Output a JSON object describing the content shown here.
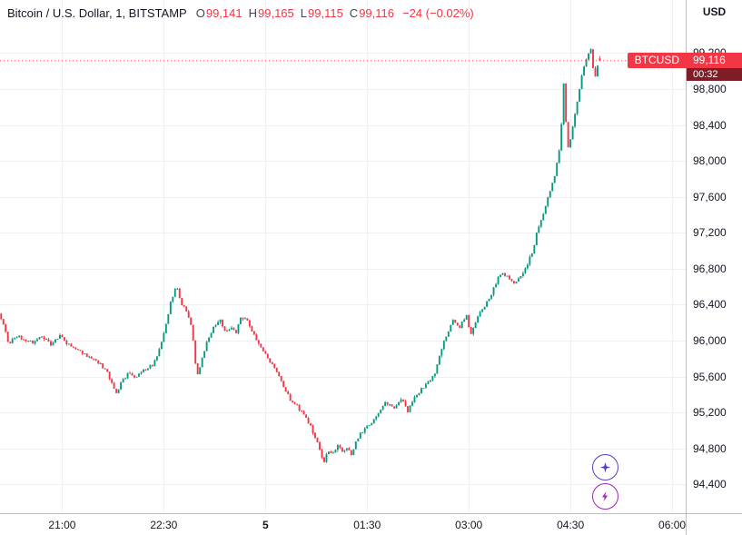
{
  "header": {
    "title": "Bitcoin / U.S. Dollar, 1, BITSTAMP",
    "ohlc": [
      {
        "k": "O",
        "v": "99,141"
      },
      {
        "k": "H",
        "v": "99,165"
      },
      {
        "k": "L",
        "v": "99,115"
      },
      {
        "k": "C",
        "v": "99,116"
      }
    ],
    "change": "−24 (−0.02%)",
    "currency": "USD"
  },
  "price_label": {
    "symbol": "BTCUSD",
    "price": "99,116",
    "countdown": "00:32"
  },
  "colors": {
    "up": "#089981",
    "down": "#f23645",
    "grid": "#eef0f3",
    "axis_line": "#b9bdc6",
    "text": "#131722",
    "badge_bg": "#f23645",
    "countdown_bg": "#7f1d27",
    "ai_button": "#5b3dc8",
    "bolt_button": "#9c27b0"
  },
  "chart_data": {
    "type": "candlestick",
    "title": "Bitcoin / U.S. Dollar",
    "symbol": "BTCUSD",
    "exchange": "BITSTAMP",
    "interval_minutes": 1,
    "last_price": 99116,
    "current_bar": {
      "open": 99141,
      "high": 99165,
      "low": 99115,
      "close": 99116,
      "change": -24,
      "change_pct": -0.02
    },
    "price_axis": {
      "view_min": 94080,
      "view_max": 99790,
      "ticks": [
        {
          "price": 94400,
          "label": "94,400"
        },
        {
          "price": 94800,
          "label": "94,800"
        },
        {
          "price": 95200,
          "label": "95,200"
        },
        {
          "price": 95600,
          "label": "95,600"
        },
        {
          "price": 96000,
          "label": "96,000"
        },
        {
          "price": 96400,
          "label": "96,400"
        },
        {
          "price": 96800,
          "label": "96,800"
        },
        {
          "price": 97200,
          "label": "97,200"
        },
        {
          "price": 97600,
          "label": "97,600"
        },
        {
          "price": 98000,
          "label": "98,000"
        },
        {
          "price": 98400,
          "label": "98,400"
        },
        {
          "price": 98800,
          "label": "98,800"
        },
        {
          "price": 99200,
          "label": "99,200"
        }
      ]
    },
    "time_axis": {
      "view_minutes": 607,
      "ticks": [
        {
          "t": 55,
          "label": "21:00"
        },
        {
          "t": 145,
          "label": "22:30"
        },
        {
          "t": 235,
          "label": "5",
          "strong": true
        },
        {
          "t": 325,
          "label": "01:30"
        },
        {
          "t": 415,
          "label": "03:00"
        },
        {
          "t": 505,
          "label": "04:30"
        },
        {
          "t": 595,
          "label": "06:00"
        }
      ]
    },
    "render": {
      "candle_minutes": 2,
      "seed": 11,
      "close_noise": 38,
      "wick_noise": 26,
      "clamp_low": 94550,
      "clamp_high": 99300
    },
    "price_path": [
      [
        0,
        96300
      ],
      [
        5,
        96150
      ],
      [
        9,
        95950
      ],
      [
        15,
        96060
      ],
      [
        22,
        96020
      ],
      [
        30,
        95980
      ],
      [
        38,
        96060
      ],
      [
        46,
        95960
      ],
      [
        54,
        96050
      ],
      [
        62,
        95950
      ],
      [
        70,
        95900
      ],
      [
        78,
        95830
      ],
      [
        86,
        95780
      ],
      [
        95,
        95670
      ],
      [
        100,
        95530
      ],
      [
        104,
        95420
      ],
      [
        109,
        95550
      ],
      [
        115,
        95640
      ],
      [
        122,
        95590
      ],
      [
        129,
        95680
      ],
      [
        136,
        95730
      ],
      [
        142,
        95900
      ],
      [
        147,
        96150
      ],
      [
        152,
        96420
      ],
      [
        157,
        96620
      ],
      [
        161,
        96430
      ],
      [
        166,
        96330
      ],
      [
        170,
        96180
      ],
      [
        173,
        95940
      ],
      [
        175,
        95560
      ],
      [
        178,
        95710
      ],
      [
        182,
        95900
      ],
      [
        187,
        96070
      ],
      [
        192,
        96190
      ],
      [
        196,
        96240
      ],
      [
        201,
        96080
      ],
      [
        206,
        96150
      ],
      [
        210,
        96090
      ],
      [
        214,
        96270
      ],
      [
        220,
        96230
      ],
      [
        226,
        96060
      ],
      [
        231,
        95950
      ],
      [
        235,
        95870
      ],
      [
        241,
        95750
      ],
      [
        247,
        95630
      ],
      [
        252,
        95480
      ],
      [
        258,
        95350
      ],
      [
        264,
        95270
      ],
      [
        270,
        95160
      ],
      [
        276,
        95050
      ],
      [
        281,
        94890
      ],
      [
        286,
        94720
      ],
      [
        288,
        94660
      ],
      [
        291,
        94790
      ],
      [
        295,
        94720
      ],
      [
        300,
        94850
      ],
      [
        304,
        94780
      ],
      [
        308,
        94810
      ],
      [
        312,
        94740
      ],
      [
        317,
        94900
      ],
      [
        321,
        94980
      ],
      [
        325,
        95030
      ],
      [
        331,
        95110
      ],
      [
        337,
        95230
      ],
      [
        343,
        95310
      ],
      [
        350,
        95250
      ],
      [
        357,
        95340
      ],
      [
        362,
        95210
      ],
      [
        368,
        95360
      ],
      [
        374,
        95460
      ],
      [
        380,
        95530
      ],
      [
        386,
        95640
      ],
      [
        391,
        95880
      ],
      [
        396,
        96050
      ],
      [
        402,
        96220
      ],
      [
        408,
        96160
      ],
      [
        414,
        96270
      ],
      [
        418,
        96070
      ],
      [
        423,
        96240
      ],
      [
        428,
        96350
      ],
      [
        434,
        96470
      ],
      [
        440,
        96640
      ],
      [
        445,
        96770
      ],
      [
        451,
        96690
      ],
      [
        457,
        96630
      ],
      [
        463,
        96750
      ],
      [
        468,
        96850
      ],
      [
        473,
        97020
      ],
      [
        477,
        97240
      ],
      [
        481,
        97390
      ],
      [
        485,
        97540
      ],
      [
        489,
        97690
      ],
      [
        493,
        97890
      ],
      [
        496,
        98100
      ],
      [
        498,
        98400
      ],
      [
        500,
        98880
      ],
      [
        502,
        98450
      ],
      [
        504,
        98140
      ],
      [
        507,
        98310
      ],
      [
        510,
        98520
      ],
      [
        513,
        98740
      ],
      [
        516,
        98950
      ],
      [
        519,
        99100
      ],
      [
        522,
        99210
      ],
      [
        524,
        99260
      ],
      [
        526,
        99030
      ],
      [
        528,
        98920
      ],
      [
        530,
        99050
      ],
      [
        533,
        99110
      ]
    ]
  }
}
